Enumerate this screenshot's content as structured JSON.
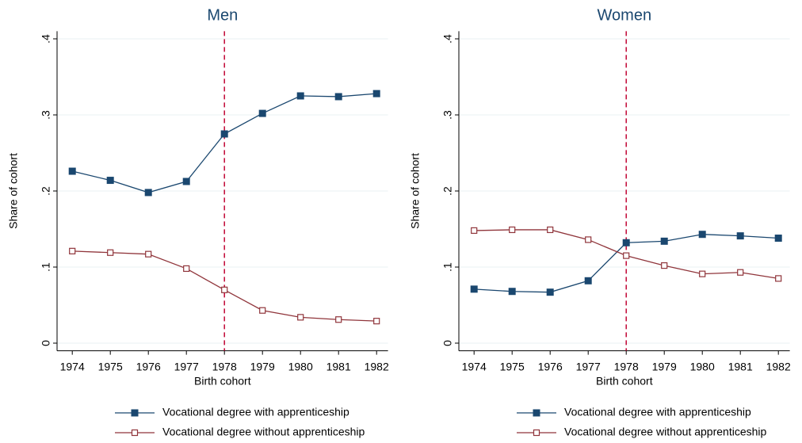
{
  "chart_data": [
    {
      "type": "line",
      "title": "Men",
      "xlabel": "Birth cohort",
      "ylabel": "Share of cohort",
      "x": [
        1974,
        1975,
        1976,
        1977,
        1978,
        1979,
        1980,
        1981,
        1982
      ],
      "series": [
        {
          "name": "Vocational degree with apprenticeship",
          "color": "#1a476f",
          "marker": "square-filled",
          "values": [
            0.226,
            0.214,
            0.198,
            0.2125,
            0.275,
            0.302,
            0.325,
            0.324,
            0.328
          ]
        },
        {
          "name": "Vocational degree without apprenticeship",
          "color": "#90353b",
          "marker": "square-hollow",
          "values": [
            0.121,
            0.119,
            0.117,
            0.098,
            0.07,
            0.043,
            0.034,
            0.031,
            0.029
          ]
        }
      ],
      "xlim": [
        1973.6,
        1982.3
      ],
      "xticks": [
        1974,
        1975,
        1976,
        1977,
        1978,
        1979,
        1980,
        1981,
        1982
      ],
      "ylim": [
        -0.01,
        0.41
      ],
      "yticks": [
        0,
        {
          "value": 0.1,
          "label": ".1"
        },
        {
          "value": 0.2,
          "label": ".2"
        },
        {
          "value": 0.3,
          "label": ".3"
        },
        {
          "value": 0.4,
          "label": ".4"
        }
      ],
      "grid": true,
      "vline": 1978,
      "vline_color": "#c10534"
    },
    {
      "type": "line",
      "title": "Women",
      "xlabel": "Birth cohort",
      "ylabel": "Share of cohort",
      "x": [
        1974,
        1975,
        1976,
        1977,
        1978,
        1979,
        1980,
        1981,
        1982
      ],
      "series": [
        {
          "name": "Vocational degree with apprenticeship",
          "color": "#1a476f",
          "marker": "square-filled",
          "values": [
            0.071,
            0.068,
            0.067,
            0.082,
            0.132,
            0.134,
            0.143,
            0.141,
            0.138
          ]
        },
        {
          "name": "Vocational degree without apprenticeship",
          "color": "#90353b",
          "marker": "square-hollow",
          "values": [
            0.148,
            0.149,
            0.149,
            0.136,
            0.115,
            0.102,
            0.091,
            0.093,
            0.085
          ]
        }
      ],
      "xlim": [
        1973.6,
        1982.3
      ],
      "xticks": [
        1974,
        1975,
        1976,
        1977,
        1978,
        1979,
        1980,
        1981,
        1982
      ],
      "ylim": [
        -0.01,
        0.41
      ],
      "yticks": [
        0,
        {
          "value": 0.1,
          "label": ".1"
        },
        {
          "value": 0.2,
          "label": ".2"
        },
        {
          "value": 0.3,
          "label": ".3"
        },
        {
          "value": 0.4,
          "label": ".4"
        }
      ],
      "grid": true,
      "vline": 1978,
      "vline_color": "#c10534"
    }
  ]
}
